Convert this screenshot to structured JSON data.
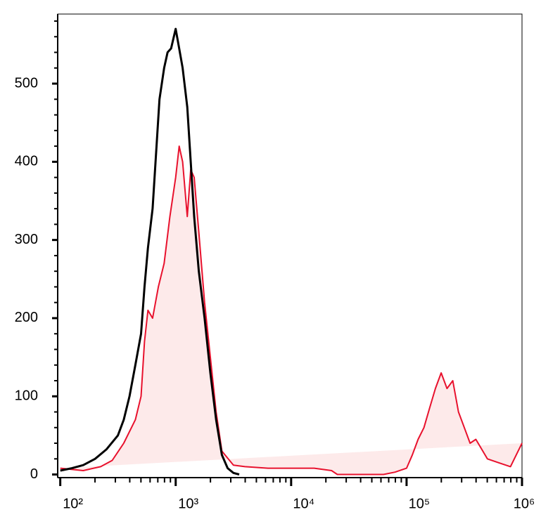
{
  "chart_data": {
    "type": "line",
    "x_scale": "log",
    "xlim": [
      95,
      1000000
    ],
    "xticks": [
      {
        "value": 100,
        "label": "10²"
      },
      {
        "value": 1000,
        "label": "10³"
      },
      {
        "value": 10000,
        "label": "10⁴"
      },
      {
        "value": 100000,
        "label": "10⁵"
      },
      {
        "value": 1000000,
        "label": "10⁶"
      }
    ],
    "ylim": [
      -4,
      589
    ],
    "yticks": [
      0,
      100,
      200,
      300,
      400,
      500
    ],
    "series": [
      {
        "color": "#e8112d",
        "fill": "#fdeaea",
        "x": [
          100,
          158,
          224,
          282,
          355,
          447,
          501,
          537,
          575,
          631,
          708,
          794,
          891,
          1000,
          1072,
          1148,
          1259,
          1349,
          1445,
          1585,
          1778,
          1995,
          2239,
          2512,
          3162,
          3981,
          6310,
          10000,
          15850,
          22390,
          25120,
          63100,
          79430,
          100000,
          112200,
          125900,
          141300,
          158500,
          177800,
          199500,
          223900,
          251200,
          281800,
          316200,
          354800,
          398100,
          501200,
          631000,
          794300,
          891300,
          1000000
        ],
        "values": [
          8,
          5,
          10,
          18,
          40,
          70,
          100,
          170,
          210,
          200,
          240,
          270,
          330,
          380,
          420,
          400,
          330,
          390,
          380,
          310,
          220,
          150,
          80,
          30,
          12,
          10,
          8,
          8,
          8,
          5,
          0,
          0,
          3,
          8,
          25,
          45,
          60,
          85,
          110,
          130,
          110,
          120,
          80,
          60,
          40,
          45,
          20,
          15,
          10,
          25,
          40
        ]
      },
      {
        "color": "#000000",
        "x": [
          100,
          126,
          158,
          200,
          251,
          316,
          355,
          398,
          447,
          501,
          537,
          575,
          631,
          676,
          724,
          794,
          851,
          912,
          1000,
          1072,
          1148,
          1259,
          1349,
          1445,
          1585,
          1778,
          1995,
          2239,
          2512,
          2818,
          3162,
          3548
        ],
        "values": [
          5,
          8,
          12,
          20,
          32,
          50,
          70,
          100,
          140,
          180,
          240,
          290,
          340,
          410,
          480,
          520,
          540,
          545,
          570,
          545,
          520,
          470,
          400,
          330,
          260,
          200,
          130,
          70,
          25,
          8,
          2,
          0
        ]
      }
    ]
  }
}
